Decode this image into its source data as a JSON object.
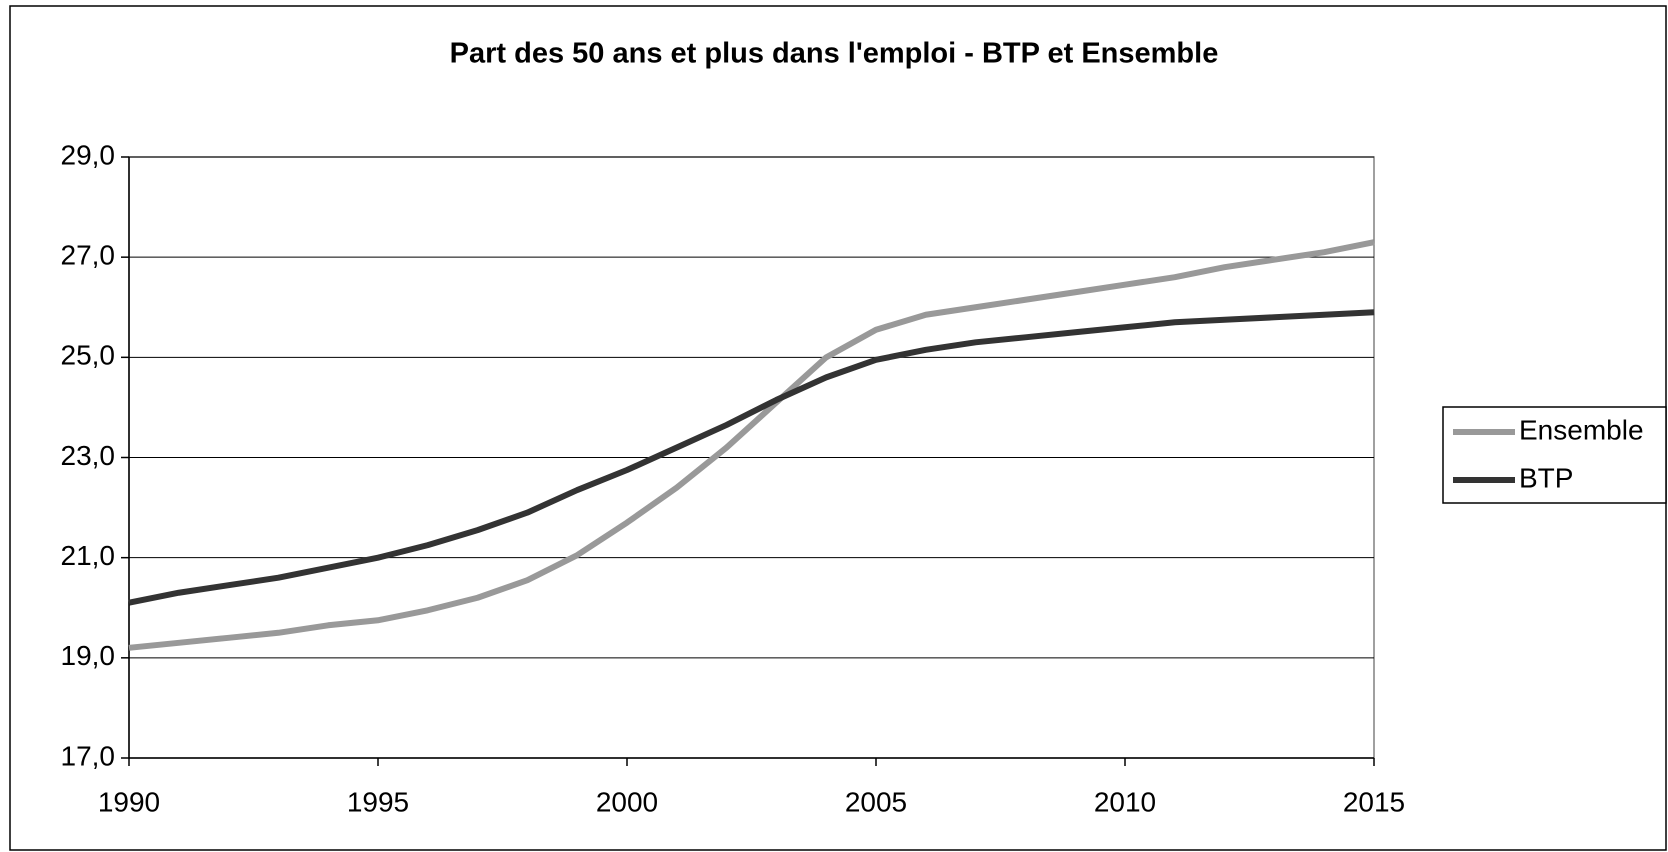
{
  "chart_data": {
    "type": "line",
    "title": "Part des 50 ans et plus dans l'emploi - BTP et Ensemble",
    "x": [
      1990,
      1991,
      1992,
      1993,
      1994,
      1995,
      1996,
      1997,
      1998,
      1999,
      2000,
      2001,
      2002,
      2003,
      2004,
      2005,
      2006,
      2007,
      2008,
      2009,
      2010,
      2011,
      2012,
      2013,
      2014,
      2015
    ],
    "series": [
      {
        "name": "Ensemble",
        "color": "#999999",
        "values": [
          19.2,
          19.3,
          19.4,
          19.5,
          19.65,
          19.75,
          19.95,
          20.2,
          20.55,
          21.05,
          21.7,
          22.4,
          23.2,
          24.1,
          25.0,
          25.55,
          25.85,
          26.0,
          26.15,
          26.3,
          26.45,
          26.6,
          26.8,
          26.95,
          27.1,
          27.3
        ]
      },
      {
        "name": "BTP",
        "color": "#333333",
        "values": [
          20.1,
          20.3,
          20.45,
          20.6,
          20.8,
          21.0,
          21.25,
          21.55,
          21.9,
          22.35,
          22.75,
          23.2,
          23.65,
          24.15,
          24.6,
          24.95,
          25.15,
          25.3,
          25.4,
          25.5,
          25.6,
          25.7,
          25.75,
          25.8,
          25.85,
          25.9
        ]
      }
    ],
    "xlim": [
      1990,
      2015
    ],
    "xticks": [
      1990,
      1995,
      2000,
      2005,
      2010,
      2015
    ],
    "ylim": [
      17,
      29
    ],
    "yticks": [
      {
        "value": 17,
        "label": "17,0"
      },
      {
        "value": 19,
        "label": "19,0"
      },
      {
        "value": 21,
        "label": "21,0"
      },
      {
        "value": 23,
        "label": "23,0"
      },
      {
        "value": 25,
        "label": "25,0"
      },
      {
        "value": 27,
        "label": "27,0"
      },
      {
        "value": 29,
        "label": "29,0"
      }
    ],
    "grid": true,
    "legend": "right"
  }
}
